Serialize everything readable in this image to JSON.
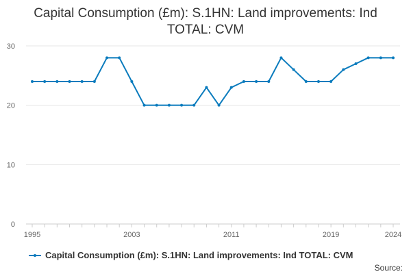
{
  "chart_data": {
    "type": "line",
    "title_line1": "Capital Consumption (£m): S.1HN: Land improvements: Ind",
    "title_line2": "TOTAL: CVM",
    "x": [
      1995,
      1996,
      1997,
      1998,
      1999,
      2000,
      2001,
      2002,
      2003,
      2004,
      2005,
      2006,
      2007,
      2008,
      2009,
      2010,
      2011,
      2012,
      2013,
      2014,
      2015,
      2016,
      2017,
      2018,
      2019,
      2020,
      2021,
      2022,
      2023,
      2024
    ],
    "series": [
      {
        "name": "Capital Consumption (£m): S.1HN: Land improvements: Ind TOTAL: CVM",
        "color": "#0a7bbd",
        "values": [
          24,
          24,
          24,
          24,
          24,
          24,
          28,
          28,
          24,
          20,
          20,
          20,
          20,
          20,
          23,
          20,
          23,
          24,
          24,
          24,
          28,
          26,
          24,
          24,
          24,
          26,
          27,
          28,
          28,
          28
        ]
      }
    ],
    "x_ticks": [
      "1995",
      "2003",
      "2011",
      "2019",
      "2024"
    ],
    "y_ticks": [
      "0",
      "10",
      "20",
      "30"
    ],
    "ylim": [
      0,
      30
    ],
    "xlabel": "",
    "ylabel": "",
    "grid": true,
    "legend_position": "bottom-left",
    "source_label": "Source:"
  }
}
